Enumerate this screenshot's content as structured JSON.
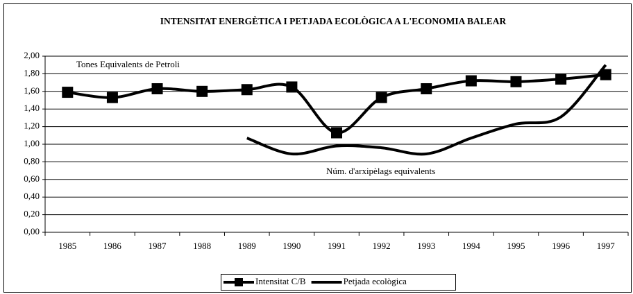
{
  "chart_data": {
    "type": "line",
    "title": "INTENSITAT ENERGÈTICA I PETJADA ECOLÒGICA A L'ECONOMIA BALEAR",
    "categories": [
      "1985",
      "1986",
      "1987",
      "1988",
      "1989",
      "1990",
      "1991",
      "1992",
      "1993",
      "1994",
      "1995",
      "1996",
      "1997"
    ],
    "series": [
      {
        "name": "Intensitat C/B",
        "color": "#000000",
        "marker": "square",
        "values": [
          1.59,
          1.53,
          1.63,
          1.6,
          1.62,
          1.65,
          1.13,
          1.53,
          1.63,
          1.72,
          1.71,
          1.74,
          1.79
        ]
      },
      {
        "name": "Petjada  ecològica",
        "color": "#000000",
        "marker": "none",
        "values": [
          null,
          null,
          null,
          null,
          1.07,
          0.89,
          0.98,
          0.96,
          0.89,
          1.07,
          1.23,
          1.31,
          1.9
        ]
      }
    ],
    "annotations": [
      "Tones Equivalents de Petroli",
      "Núm. d'arxipèlags equivalents"
    ],
    "ylim": [
      0,
      2
    ],
    "yticks": [
      {
        "value": 0,
        "label": "0,00"
      },
      {
        "value": 0.2,
        "label": "0,20"
      },
      {
        "value": 0.4,
        "label": "0,40"
      },
      {
        "value": 0.6,
        "label": "0,60"
      },
      {
        "value": 0.8,
        "label": "0,80"
      },
      {
        "value": 1,
        "label": "1,00"
      },
      {
        "value": 1.2,
        "label": "1,20"
      },
      {
        "value": 1.4,
        "label": "1,40"
      },
      {
        "value": 1.6,
        "label": "1,60"
      },
      {
        "value": 1.8,
        "label": "1,80"
      },
      {
        "value": 2,
        "label": "2,00"
      }
    ],
    "grid": true,
    "smooth": true,
    "legend": "bottom"
  }
}
